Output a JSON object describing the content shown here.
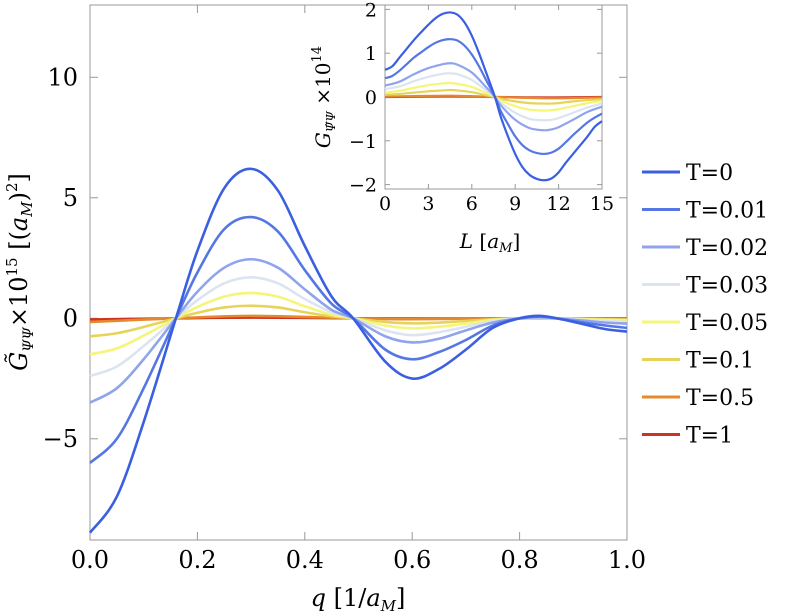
{
  "chart_data": [
    {
      "type": "line",
      "xlabel": "q [1/a_M]",
      "ylabel": "G̃_ΨΨ ×10^15 [(a_M)^2]",
      "xlim": [
        0,
        1
      ],
      "ylim": [
        -9.2,
        13
      ],
      "xticks": [
        "0.0",
        "0.2",
        "0.4",
        "0.6",
        "0.8",
        "1.0"
      ],
      "yticks": [
        "−5",
        "0",
        "5",
        "10"
      ],
      "series": [
        {
          "name": "T=0",
          "color": "#3a5fe0",
          "x": [
            0,
            0.05,
            0.1,
            0.16,
            0.2,
            0.25,
            0.3,
            0.35,
            0.4,
            0.45,
            0.49,
            0.55,
            0.6,
            0.65,
            0.7,
            0.75,
            0.8,
            0.84,
            0.88,
            0.92,
            0.96,
            1.0
          ],
          "y": [
            -8.9,
            -7.4,
            -4.3,
            0,
            2.8,
            5.4,
            6.2,
            5.3,
            3.0,
            0.9,
            0,
            -1.8,
            -2.5,
            -2.1,
            -1.3,
            -0.4,
            0,
            0.1,
            -0.05,
            -0.25,
            -0.45,
            -0.55
          ]
        },
        {
          "name": "T=0.01",
          "color": "#5577e3",
          "x": [
            0,
            0.05,
            0.1,
            0.16,
            0.2,
            0.25,
            0.3,
            0.35,
            0.4,
            0.45,
            0.49,
            0.55,
            0.6,
            0.65,
            0.7,
            0.75,
            0.8,
            0.84,
            0.88,
            0.92,
            0.96,
            1.0
          ],
          "y": [
            -6.0,
            -5.0,
            -2.9,
            0,
            1.9,
            3.7,
            4.2,
            3.6,
            2.0,
            0.6,
            0,
            -1.3,
            -1.7,
            -1.4,
            -0.9,
            -0.3,
            0,
            0.07,
            -0.04,
            -0.18,
            -0.3,
            -0.4
          ]
        },
        {
          "name": "T=0.02",
          "color": "#8fa4ec",
          "x": [
            0,
            0.05,
            0.1,
            0.16,
            0.2,
            0.25,
            0.3,
            0.35,
            0.4,
            0.45,
            0.49,
            0.55,
            0.6,
            0.65,
            0.7,
            0.75,
            0.8,
            0.84,
            0.88,
            0.92,
            0.96,
            1.0
          ],
          "y": [
            -3.5,
            -2.9,
            -1.7,
            0,
            1.1,
            2.1,
            2.45,
            2.1,
            1.2,
            0.35,
            0,
            -0.75,
            -1.0,
            -0.85,
            -0.5,
            -0.18,
            0,
            0.04,
            -0.02,
            -0.1,
            -0.18,
            -0.22
          ]
        },
        {
          "name": "T=0.03",
          "color": "#dce4f0",
          "x": [
            0,
            0.05,
            0.1,
            0.16,
            0.2,
            0.25,
            0.3,
            0.35,
            0.4,
            0.45,
            0.49,
            0.55,
            0.6,
            0.65,
            0.7,
            0.75,
            0.8,
            0.84,
            0.88,
            0.92,
            0.96,
            1.0
          ],
          "y": [
            -2.4,
            -2.0,
            -1.15,
            0,
            0.75,
            1.45,
            1.7,
            1.45,
            0.8,
            0.25,
            0,
            -0.5,
            -0.7,
            -0.58,
            -0.35,
            -0.12,
            0,
            0.03,
            -0.02,
            -0.07,
            -0.12,
            -0.15
          ]
        },
        {
          "name": "T=0.05",
          "color": "#f5f57a",
          "x": [
            0,
            0.05,
            0.1,
            0.16,
            0.2,
            0.25,
            0.3,
            0.35,
            0.4,
            0.45,
            0.49,
            0.55,
            0.6,
            0.65,
            0.7,
            0.75,
            0.8,
            0.84,
            0.88,
            0.92,
            0.96,
            1.0
          ],
          "y": [
            -1.5,
            -1.25,
            -0.72,
            0,
            0.47,
            0.9,
            1.05,
            0.9,
            0.5,
            0.15,
            0,
            -0.3,
            -0.42,
            -0.35,
            -0.22,
            -0.07,
            0,
            0.02,
            -0.01,
            -0.04,
            -0.07,
            -0.09
          ]
        },
        {
          "name": "T=0.1",
          "color": "#e8d35a",
          "x": [
            0,
            0.05,
            0.1,
            0.16,
            0.2,
            0.25,
            0.3,
            0.35,
            0.4,
            0.45,
            0.49,
            0.55,
            0.6,
            0.65,
            0.7,
            0.75,
            0.8,
            0.84,
            0.88,
            0.92,
            0.96,
            1.0
          ],
          "y": [
            -0.75,
            -0.62,
            -0.36,
            0,
            0.23,
            0.45,
            0.52,
            0.45,
            0.25,
            0.08,
            0,
            -0.15,
            -0.21,
            -0.18,
            -0.11,
            -0.04,
            0,
            0.01,
            0,
            -0.02,
            -0.04,
            -0.05
          ]
        },
        {
          "name": "T=0.5",
          "color": "#e58a2c",
          "x": [
            0,
            0.16,
            0.3,
            0.49,
            0.6,
            0.8,
            1.0
          ],
          "y": [
            -0.15,
            0,
            0.1,
            0,
            -0.04,
            0,
            -0.01
          ]
        },
        {
          "name": "T=1",
          "color": "#cc3322",
          "x": [
            0,
            0.16,
            0.3,
            0.49,
            0.6,
            0.8,
            1.0
          ],
          "y": [
            -0.05,
            0,
            0.03,
            0,
            -0.01,
            0,
            0
          ]
        }
      ]
    },
    {
      "type": "line",
      "xlabel": "L [a_M]",
      "ylabel": "G_ΨΨ ×10^14",
      "xlim": [
        0,
        15
      ],
      "ylim": [
        -2.1,
        2.1
      ],
      "xticks": [
        "0",
        "3",
        "6",
        "9",
        "12",
        "15"
      ],
      "yticks": [
        "−2",
        "−1",
        "0",
        "1",
        "2"
      ],
      "series": [
        {
          "name": "T=0",
          "color": "#3a5fe0",
          "x": [
            0,
            0.5,
            1,
            1.5,
            2,
            2.5,
            3,
            3.5,
            4,
            4.5,
            5,
            5.5,
            6,
            6.5,
            7,
            7.6,
            8,
            8.5,
            9,
            9.5,
            10,
            10.5,
            11,
            11.5,
            12,
            12.5,
            13,
            13.5,
            14,
            14.5,
            15
          ],
          "y": [
            0.62,
            0.7,
            0.9,
            1.1,
            1.3,
            1.48,
            1.65,
            1.8,
            1.9,
            1.93,
            1.88,
            1.7,
            1.4,
            1.0,
            0.55,
            0,
            -0.45,
            -0.9,
            -1.3,
            -1.6,
            -1.78,
            -1.87,
            -1.9,
            -1.86,
            -1.72,
            -1.5,
            -1.3,
            -1.1,
            -0.9,
            -0.68,
            -0.55
          ]
        },
        {
          "name": "T=0.01",
          "color": "#5577e3",
          "x": [
            0,
            0.5,
            1,
            1.5,
            2,
            2.5,
            3,
            3.5,
            4,
            4.5,
            5,
            5.5,
            6,
            6.5,
            7,
            7.6,
            8,
            8.5,
            9,
            9.5,
            10,
            10.5,
            11,
            11.5,
            12,
            12.5,
            13,
            13.5,
            14,
            14.5,
            15
          ],
          "y": [
            0.43,
            0.48,
            0.6,
            0.75,
            0.9,
            1.02,
            1.14,
            1.24,
            1.3,
            1.32,
            1.29,
            1.17,
            0.97,
            0.7,
            0.38,
            0,
            -0.32,
            -0.62,
            -0.9,
            -1.1,
            -1.22,
            -1.28,
            -1.3,
            -1.27,
            -1.18,
            -1.03,
            -0.87,
            -0.72,
            -0.58,
            -0.47,
            -0.38
          ]
        },
        {
          "name": "T=0.02",
          "color": "#8fa4ec",
          "x": [
            0,
            1,
            2,
            3,
            4,
            4.5,
            5,
            6,
            7,
            7.6,
            8,
            9,
            10,
            11,
            11.5,
            12,
            13,
            14,
            15
          ],
          "y": [
            0.26,
            0.35,
            0.52,
            0.66,
            0.75,
            0.77,
            0.74,
            0.56,
            0.22,
            0,
            -0.19,
            -0.52,
            -0.71,
            -0.76,
            -0.74,
            -0.69,
            -0.52,
            -0.34,
            -0.22
          ]
        },
        {
          "name": "T=0.03",
          "color": "#dce4f0",
          "x": [
            0,
            1,
            2,
            3,
            4,
            4.5,
            5,
            6,
            7,
            7.6,
            8,
            9,
            10,
            11,
            11.5,
            12,
            13,
            14,
            15
          ],
          "y": [
            0.18,
            0.24,
            0.36,
            0.46,
            0.53,
            0.54,
            0.52,
            0.39,
            0.15,
            0,
            -0.13,
            -0.36,
            -0.5,
            -0.53,
            -0.52,
            -0.48,
            -0.36,
            -0.24,
            -0.15
          ]
        },
        {
          "name": "T=0.05",
          "color": "#f5f57a",
          "x": [
            0,
            1,
            2,
            3,
            4,
            4.5,
            5,
            6,
            7,
            7.6,
            8,
            9,
            10,
            11,
            11.5,
            12,
            13,
            14,
            15
          ],
          "y": [
            0.1,
            0.14,
            0.21,
            0.27,
            0.31,
            0.32,
            0.3,
            0.23,
            0.09,
            0,
            -0.08,
            -0.21,
            -0.29,
            -0.31,
            -0.3,
            -0.28,
            -0.21,
            -0.14,
            -0.09
          ]
        },
        {
          "name": "T=0.1",
          "color": "#e8d35a",
          "x": [
            0,
            1,
            2,
            3,
            4,
            4.5,
            5,
            6,
            7,
            7.6,
            8,
            9,
            10,
            11,
            11.5,
            12,
            13,
            14,
            15
          ],
          "y": [
            0.05,
            0.07,
            0.1,
            0.13,
            0.15,
            0.16,
            0.15,
            0.11,
            0.04,
            0,
            -0.04,
            -0.1,
            -0.14,
            -0.15,
            -0.15,
            -0.14,
            -0.1,
            -0.07,
            -0.05
          ]
        },
        {
          "name": "T=0.5",
          "color": "#e58a2c",
          "x": [
            0,
            4.5,
            7.6,
            11.5,
            15
          ],
          "y": [
            0.01,
            0.03,
            0,
            -0.03,
            -0.01
          ]
        },
        {
          "name": "T=1",
          "color": "#cc3322",
          "x": [
            0,
            4.5,
            7.6,
            11.5,
            15
          ],
          "y": [
            0,
            0.01,
            0,
            -0.01,
            0
          ]
        }
      ]
    }
  ],
  "legend": {
    "placement": "right",
    "items": [
      {
        "label": "T=0",
        "color": "#3a5fe0"
      },
      {
        "label": "T=0.01",
        "color": "#5577e3"
      },
      {
        "label": "T=0.02",
        "color": "#8fa4ec"
      },
      {
        "label": "T=0.03",
        "color": "#dce4f0"
      },
      {
        "label": "T=0.05",
        "color": "#f5f57a"
      },
      {
        "label": "T=0.1",
        "color": "#e8d35a"
      },
      {
        "label": "T=0.5",
        "color": "#e58a2c"
      },
      {
        "label": "T=1",
        "color": "#cc3322"
      }
    ]
  }
}
